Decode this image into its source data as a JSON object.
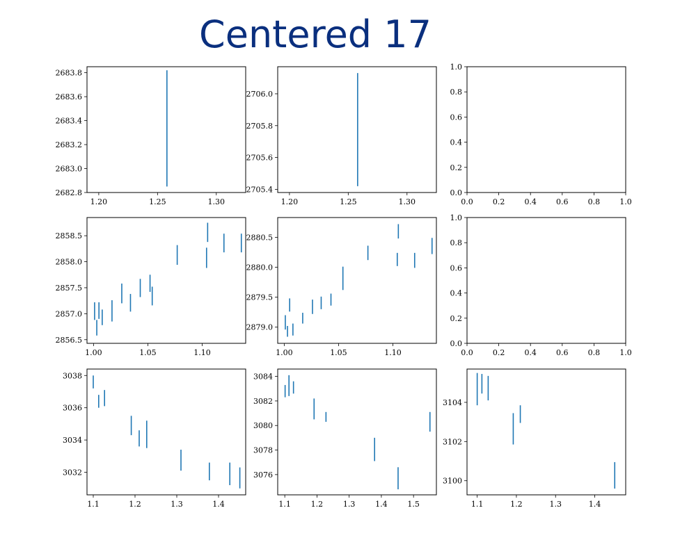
{
  "figure": {
    "title": "Centered 17"
  },
  "chart_data": [
    {
      "panel": "row1-col1",
      "type": "errorbar",
      "xlim": [
        1.19,
        1.325
      ],
      "ylim": [
        2682.8,
        2683.85
      ],
      "xticks": [
        1.2,
        1.25,
        1.3
      ],
      "xtick_labels": [
        "1.20",
        "1.25",
        "1.30"
      ],
      "yticks": [
        2682.8,
        2683.0,
        2683.2,
        2683.4,
        2683.6,
        2683.8
      ],
      "ytick_labels": [
        "2682.8",
        "2683.0",
        "2683.2",
        "2683.4",
        "2683.6",
        "2683.8"
      ],
      "points": [
        {
          "x": 1.258,
          "ylo": 2682.85,
          "yhi": 2683.82
        }
      ]
    },
    {
      "panel": "row1-col2",
      "type": "errorbar",
      "xlim": [
        1.19,
        1.325
      ],
      "ylim": [
        2705.38,
        2706.17
      ],
      "xticks": [
        1.2,
        1.25,
        1.3
      ],
      "xtick_labels": [
        "1.20",
        "1.25",
        "1.30"
      ],
      "yticks": [
        2705.4,
        2705.6,
        2705.8,
        2706.0
      ],
      "ytick_labels": [
        "2705.4",
        "2705.6",
        "2705.8",
        "2706.0"
      ],
      "points": [
        {
          "x": 1.258,
          "ylo": 2705.42,
          "yhi": 2706.13
        }
      ]
    },
    {
      "panel": "row1-col3",
      "type": "empty",
      "xlim": [
        0,
        1
      ],
      "ylim": [
        0,
        1
      ],
      "xticks": [
        0,
        0.2,
        0.4,
        0.6,
        0.8,
        1.0
      ],
      "xtick_labels": [
        "0.0",
        "0.2",
        "0.4",
        "0.6",
        "0.8",
        "1.0"
      ],
      "yticks": [
        0,
        0.2,
        0.4,
        0.6,
        0.8,
        1.0
      ],
      "ytick_labels": [
        "0.0",
        "0.2",
        "0.4",
        "0.6",
        "0.8",
        "1.0"
      ],
      "points": []
    },
    {
      "panel": "row2-col1",
      "type": "errorbar",
      "xlim": [
        0.994,
        1.14
      ],
      "ylim": [
        2856.43,
        2858.85
      ],
      "xticks": [
        1.0,
        1.05,
        1.1
      ],
      "xtick_labels": [
        "1.00",
        "1.05",
        "1.10"
      ],
      "yticks": [
        2856.5,
        2857.0,
        2857.5,
        2858.0,
        2858.5
      ],
      "ytick_labels": [
        "2856.5",
        "2857.0",
        "2857.5",
        "2858.0",
        "2858.5"
      ],
      "points": [
        {
          "x": 1.001,
          "ylo": 2856.88,
          "yhi": 2857.22
        },
        {
          "x": 1.003,
          "ylo": 2856.58,
          "yhi": 2856.88
        },
        {
          "x": 1.005,
          "ylo": 2856.9,
          "yhi": 2857.22
        },
        {
          "x": 1.008,
          "ylo": 2856.78,
          "yhi": 2857.08
        },
        {
          "x": 1.017,
          "ylo": 2856.85,
          "yhi": 2857.26
        },
        {
          "x": 1.026,
          "ylo": 2857.2,
          "yhi": 2857.58
        },
        {
          "x": 1.034,
          "ylo": 2857.04,
          "yhi": 2857.38
        },
        {
          "x": 1.043,
          "ylo": 2857.32,
          "yhi": 2857.67
        },
        {
          "x": 1.052,
          "ylo": 2857.42,
          "yhi": 2857.75
        },
        {
          "x": 1.054,
          "ylo": 2857.16,
          "yhi": 2857.52
        },
        {
          "x": 1.077,
          "ylo": 2857.94,
          "yhi": 2858.32
        },
        {
          "x": 1.104,
          "ylo": 2857.88,
          "yhi": 2858.27
        },
        {
          "x": 1.105,
          "ylo": 2858.38,
          "yhi": 2858.75
        },
        {
          "x": 1.12,
          "ylo": 2858.18,
          "yhi": 2858.54
        },
        {
          "x": 1.136,
          "ylo": 2858.18,
          "yhi": 2858.54
        }
      ]
    },
    {
      "panel": "row2-col2",
      "type": "errorbar",
      "xlim": [
        0.994,
        1.14
      ],
      "ylim": [
        2878.73,
        2880.83
      ],
      "xticks": [
        1.0,
        1.05,
        1.1
      ],
      "xtick_labels": [
        "1.00",
        "1.05",
        "1.10"
      ],
      "yticks": [
        2879.0,
        2879.5,
        2880.0,
        2880.5
      ],
      "ytick_labels": [
        "2879.0",
        "2879.5",
        "2880.0",
        "2880.5"
      ],
      "points": [
        {
          "x": 1.001,
          "ylo": 2878.96,
          "yhi": 2879.2
        },
        {
          "x": 1.003,
          "ylo": 2878.84,
          "yhi": 2879.02
        },
        {
          "x": 1.005,
          "ylo": 2879.26,
          "yhi": 2879.48
        },
        {
          "x": 1.008,
          "ylo": 2878.86,
          "yhi": 2879.06
        },
        {
          "x": 1.017,
          "ylo": 2879.06,
          "yhi": 2879.24
        },
        {
          "x": 1.026,
          "ylo": 2879.22,
          "yhi": 2879.46
        },
        {
          "x": 1.034,
          "ylo": 2879.3,
          "yhi": 2879.51
        },
        {
          "x": 1.043,
          "ylo": 2879.36,
          "yhi": 2879.56
        },
        {
          "x": 1.054,
          "ylo": 2879.62,
          "yhi": 2880.01
        },
        {
          "x": 1.077,
          "ylo": 2880.12,
          "yhi": 2880.36
        },
        {
          "x": 1.104,
          "ylo": 2880.02,
          "yhi": 2880.24
        },
        {
          "x": 1.105,
          "ylo": 2880.48,
          "yhi": 2880.72
        },
        {
          "x": 1.12,
          "ylo": 2879.99,
          "yhi": 2880.24
        },
        {
          "x": 1.136,
          "ylo": 2880.22,
          "yhi": 2880.49
        }
      ]
    },
    {
      "panel": "row2-col3",
      "type": "empty",
      "xlim": [
        0,
        1
      ],
      "ylim": [
        0,
        1
      ],
      "xticks": [
        0,
        0.2,
        0.4,
        0.6,
        0.8,
        1.0
      ],
      "xtick_labels": [
        "0.0",
        "0.2",
        "0.4",
        "0.6",
        "0.8",
        "1.0"
      ],
      "yticks": [
        0,
        0.2,
        0.4,
        0.6,
        0.8,
        1.0
      ],
      "ytick_labels": [
        "0.0",
        "0.2",
        "0.4",
        "0.6",
        "0.8",
        "1.0"
      ],
      "points": []
    },
    {
      "panel": "row3-col1",
      "type": "errorbar",
      "xlim": [
        1.085,
        1.465
      ],
      "ylim": [
        3030.6,
        3038.4
      ],
      "xticks": [
        1.1,
        1.2,
        1.3,
        1.4
      ],
      "xtick_labels": [
        "1.1",
        "1.2",
        "1.3",
        "1.4"
      ],
      "yticks": [
        3032,
        3034,
        3036,
        3038
      ],
      "ytick_labels": [
        "3032",
        "3034",
        "3036",
        "3038"
      ],
      "points": [
        {
          "x": 1.1,
          "ylo": 3037.2,
          "yhi": 3038.0
        },
        {
          "x": 1.113,
          "ylo": 3036.0,
          "yhi": 3036.8
        },
        {
          "x": 1.127,
          "ylo": 3036.1,
          "yhi": 3037.1
        },
        {
          "x": 1.191,
          "ylo": 3034.3,
          "yhi": 3035.5
        },
        {
          "x": 1.21,
          "ylo": 3033.6,
          "yhi": 3034.6
        },
        {
          "x": 1.228,
          "ylo": 3033.5,
          "yhi": 3035.2
        },
        {
          "x": 1.31,
          "ylo": 3032.1,
          "yhi": 3033.4
        },
        {
          "x": 1.378,
          "ylo": 3031.5,
          "yhi": 3032.6
        },
        {
          "x": 1.427,
          "ylo": 3031.2,
          "yhi": 3032.6
        },
        {
          "x": 1.451,
          "ylo": 3031.0,
          "yhi": 3032.3
        }
      ]
    },
    {
      "panel": "row3-col2",
      "type": "errorbar",
      "xlim": [
        1.078,
        1.571
      ],
      "ylim": [
        3074.35,
        3084.6
      ],
      "xticks": [
        1.1,
        1.2,
        1.3,
        1.4,
        1.5
      ],
      "xtick_labels": [
        "1.1",
        "1.2",
        "1.3",
        "1.4",
        "1.5"
      ],
      "yticks": [
        3076,
        3078,
        3080,
        3082,
        3084
      ],
      "ytick_labels": [
        "3076",
        "3078",
        "3080",
        "3082",
        "3084"
      ],
      "points": [
        {
          "x": 1.101,
          "ylo": 3082.3,
          "yhi": 3083.3
        },
        {
          "x": 1.113,
          "ylo": 3082.4,
          "yhi": 3084.1
        },
        {
          "x": 1.127,
          "ylo": 3082.6,
          "yhi": 3083.6
        },
        {
          "x": 1.191,
          "ylo": 3080.5,
          "yhi": 3082.2
        },
        {
          "x": 1.228,
          "ylo": 3080.3,
          "yhi": 3081.1
        },
        {
          "x": 1.379,
          "ylo": 3077.1,
          "yhi": 3079.0
        },
        {
          "x": 1.452,
          "ylo": 3074.8,
          "yhi": 3076.6
        },
        {
          "x": 1.551,
          "ylo": 3079.5,
          "yhi": 3081.1
        }
      ]
    },
    {
      "panel": "row3-col3",
      "type": "errorbar",
      "xlim": [
        1.074,
        1.479
      ],
      "ylim": [
        3099.28,
        3105.7
      ],
      "xticks": [
        1.1,
        1.2,
        1.3,
        1.4
      ],
      "xtick_labels": [
        "1.1",
        "1.2",
        "1.3",
        "1.4"
      ],
      "yticks": [
        3100,
        3102,
        3104
      ],
      "ytick_labels": [
        "3100",
        "3102",
        "3104"
      ],
      "points": [
        {
          "x": 1.1,
          "ylo": 3103.85,
          "yhi": 3105.5
        },
        {
          "x": 1.112,
          "ylo": 3104.45,
          "yhi": 3105.45
        },
        {
          "x": 1.128,
          "ylo": 3104.1,
          "yhi": 3105.35
        },
        {
          "x": 1.192,
          "ylo": 3101.85,
          "yhi": 3103.45
        },
        {
          "x": 1.21,
          "ylo": 3102.95,
          "yhi": 3103.85
        },
        {
          "x": 1.451,
          "ylo": 3099.6,
          "yhi": 3100.95
        }
      ]
    }
  ]
}
